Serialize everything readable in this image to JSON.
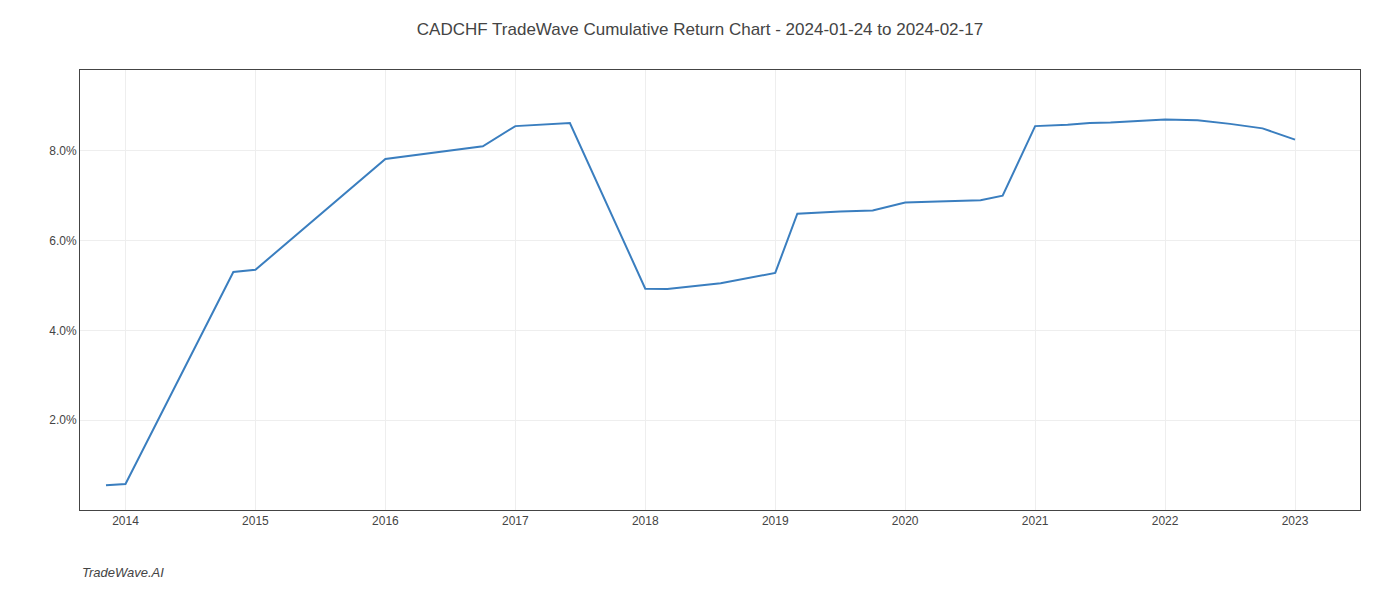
{
  "chart_data": {
    "type": "line",
    "title": "CADCHF TradeWave Cumulative Return Chart - 2024-01-24 to 2024-02-17",
    "annotations": [
      "TradeWave.AI"
    ],
    "x": [
      2013.85,
      2014.0,
      2014.83,
      2015.0,
      2016.0,
      2016.75,
      2017.0,
      2017.42,
      2018.0,
      2018.17,
      2018.58,
      2019.0,
      2019.17,
      2019.5,
      2019.75,
      2020.0,
      2020.25,
      2020.42,
      2020.58,
      2020.75,
      2021.0,
      2021.25,
      2021.42,
      2021.58,
      2022.0,
      2022.25,
      2022.5,
      2022.75,
      2023.0
    ],
    "values": [
      0.55,
      0.58,
      5.3,
      5.35,
      7.82,
      8.1,
      8.55,
      8.62,
      4.93,
      4.92,
      5.05,
      5.28,
      6.6,
      6.65,
      6.67,
      6.85,
      6.87,
      6.88,
      6.9,
      7.0,
      8.55,
      8.58,
      8.62,
      8.63,
      8.7,
      8.68,
      8.6,
      8.5,
      8.25
    ],
    "color": "#3a7ebf",
    "xlim": [
      2013.65,
      2023.5
    ],
    "ylim": [
      0.0,
      9.8
    ],
    "xticks": [
      2014,
      2015,
      2016,
      2017,
      2018,
      2019,
      2020,
      2021,
      2022,
      2023
    ],
    "yticks": [
      {
        "value": 2.0,
        "label": "2.0%"
      },
      {
        "value": 4.0,
        "label": "4.0%"
      },
      {
        "value": 6.0,
        "label": "6.0%"
      },
      {
        "value": 8.0,
        "label": "8.0%"
      }
    ],
    "grid": true
  }
}
